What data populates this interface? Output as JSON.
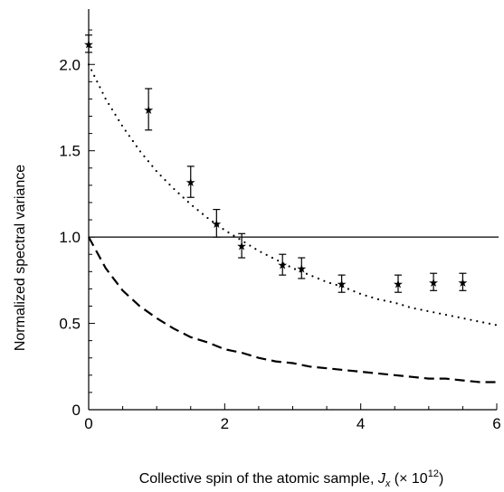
{
  "chart_data": {
    "type": "scatter",
    "title": "",
    "xlabel_main": "Collective spin of the atomic sample, ",
    "xlabel_var": "J",
    "xlabel_sub": "x",
    "xlabel_unit_prefix": " (× 10",
    "xlabel_unit_exp": "12",
    "xlabel_unit_suffix": ")",
    "ylabel": "Normalized spectral variance",
    "xlim": [
      0,
      6
    ],
    "ylim": [
      0,
      2.3
    ],
    "x_ticks": [
      0,
      2,
      4,
      6
    ],
    "y_ticks": [
      0,
      0.5,
      1.0,
      1.5,
      2.0
    ],
    "y_tick_labels": [
      "0",
      "0.5",
      "1.0",
      "1.5",
      "2.0"
    ],
    "reference_line_y": 1.0,
    "series": [
      {
        "marker": "star",
        "points": [
          {
            "x": 0.0,
            "y": 2.12,
            "yerr": 0.05
          },
          {
            "x": 0.88,
            "y": 1.74,
            "yerr": 0.12
          },
          {
            "x": 1.5,
            "y": 1.32,
            "yerr": 0.09
          },
          {
            "x": 1.88,
            "y": 1.08,
            "yerr": 0.08
          },
          {
            "x": 2.25,
            "y": 0.95,
            "yerr": 0.07
          },
          {
            "x": 2.85,
            "y": 0.84,
            "yerr": 0.06
          },
          {
            "x": 3.13,
            "y": 0.82,
            "yerr": 0.06
          },
          {
            "x": 3.72,
            "y": 0.73,
            "yerr": 0.05
          },
          {
            "x": 4.55,
            "y": 0.73,
            "yerr": 0.05
          },
          {
            "x": 5.07,
            "y": 0.74,
            "yerr": 0.05
          },
          {
            "x": 5.5,
            "y": 0.74,
            "yerr": 0.05
          }
        ]
      },
      {
        "style": "dotted",
        "x": [
          0,
          0.25,
          0.5,
          0.75,
          1.0,
          1.25,
          1.5,
          1.75,
          2.0,
          2.25,
          2.5,
          2.75,
          3.0,
          3.25,
          3.5,
          3.75,
          4.0,
          4.25,
          4.5,
          4.75,
          5.0,
          5.25,
          5.5,
          5.75,
          6.0
        ],
        "y": [
          2.0,
          1.8,
          1.64,
          1.5,
          1.38,
          1.28,
          1.19,
          1.11,
          1.04,
          0.98,
          0.92,
          0.87,
          0.82,
          0.78,
          0.74,
          0.71,
          0.67,
          0.64,
          0.62,
          0.59,
          0.57,
          0.55,
          0.53,
          0.51,
          0.49
        ]
      },
      {
        "style": "dashed",
        "x": [
          0,
          0.25,
          0.5,
          0.75,
          1.0,
          1.25,
          1.5,
          1.75,
          2.0,
          2.25,
          2.5,
          2.75,
          3.0,
          3.25,
          3.5,
          3.75,
          4.0,
          4.25,
          4.5,
          4.75,
          5.0,
          5.25,
          5.5,
          5.75,
          6.0
        ],
        "y": [
          1.0,
          0.82,
          0.69,
          0.6,
          0.53,
          0.47,
          0.42,
          0.39,
          0.35,
          0.33,
          0.3,
          0.28,
          0.27,
          0.25,
          0.24,
          0.23,
          0.22,
          0.21,
          0.2,
          0.19,
          0.18,
          0.18,
          0.17,
          0.16,
          0.16
        ]
      }
    ]
  }
}
